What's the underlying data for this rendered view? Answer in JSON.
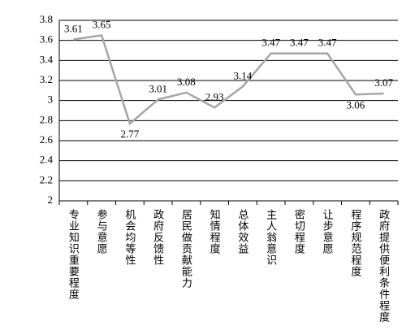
{
  "chart_data": {
    "type": "line",
    "categories": [
      "专业知识重要程度",
      "参与意愿",
      "机会均等性",
      "政府反馈性",
      "居民做贡献能力",
      "知情程度",
      "总体效益",
      "主人翁意识",
      "密切程度",
      "让步意愿",
      "程序规范程度",
      "政府提供便利条件程度"
    ],
    "series": [
      {
        "color": "#a6a6a6",
        "values": [
          3.61,
          3.65,
          2.77,
          3.01,
          3.08,
          2.93,
          3.14,
          3.47,
          3.47,
          3.47,
          3.06,
          3.07
        ]
      }
    ],
    "ylim": [
      2,
      3.8
    ],
    "yticks": [
      2,
      2.2,
      2.4,
      2.6,
      2.8,
      3,
      3.2,
      3.4,
      3.6,
      3.8
    ],
    "grid": true
  }
}
